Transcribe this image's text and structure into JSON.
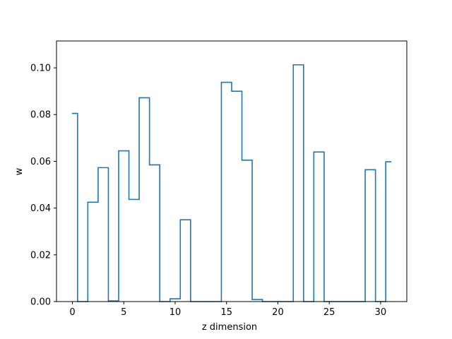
{
  "chart_data": {
    "type": "line",
    "drawstyle": "steps-mid",
    "title": "",
    "xlabel": "z dimension",
    "ylabel": "w",
    "xlim": [
      -1.55,
      32.55
    ],
    "ylim": [
      0,
      0.1115
    ],
    "grid": false,
    "x_ticks": [
      0,
      5,
      10,
      15,
      20,
      25,
      30
    ],
    "x_tick_labels": [
      "0",
      "5",
      "10",
      "15",
      "20",
      "25",
      "30"
    ],
    "y_ticks": [
      0.0,
      0.02,
      0.04,
      0.06,
      0.08,
      0.1
    ],
    "y_tick_labels": [
      "0.00",
      "0.02",
      "0.04",
      "0.06",
      "0.08",
      "0.10"
    ],
    "series": [
      {
        "color": "#1f77b4",
        "x": [
          0,
          1,
          2,
          3,
          4,
          5,
          6,
          7,
          8,
          9,
          10,
          11,
          12,
          13,
          14,
          15,
          16,
          17,
          18,
          19,
          20,
          21,
          22,
          23,
          24,
          25,
          26,
          27,
          28,
          29,
          30,
          31
        ],
        "values": [
          0.0805,
          0,
          0.0425,
          0.0573,
          0.0003,
          0.0645,
          0.0437,
          0.0872,
          0.0585,
          0,
          0.0012,
          0.035,
          0,
          0,
          0,
          0.0938,
          0.09,
          0.0605,
          0.0009,
          0,
          0,
          0,
          0.1013,
          0,
          0.064,
          0,
          0,
          0,
          0,
          0.0564,
          0,
          0.0598
        ]
      }
    ]
  }
}
